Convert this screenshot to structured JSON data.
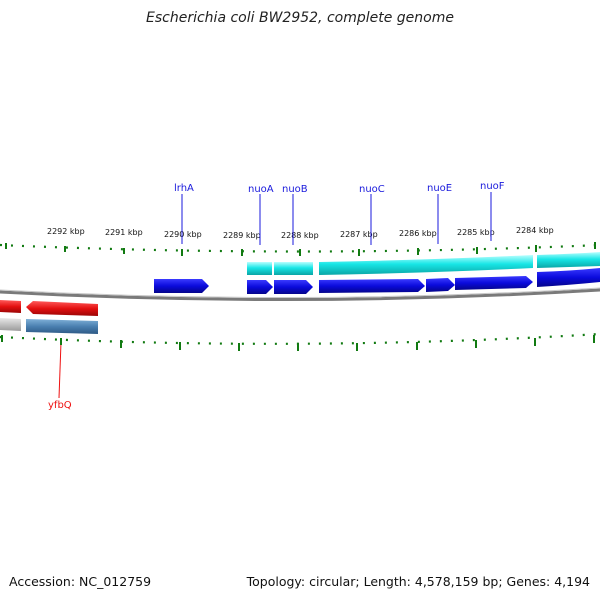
{
  "title": "Escherichia coli BW2952, complete genome",
  "footer": {
    "accession": "Accession: NC_012759",
    "summary": "Topology: circular; Length: 4,578,159 bp; Genes: 4,194"
  },
  "scale_labels": [
    "2292 kbp",
    "2291 kbp",
    "2290 kbp",
    "2289 kbp",
    "2288 kbp",
    "2287 kbp",
    "2286 kbp",
    "2285 kbp",
    "2284 kbp"
  ],
  "gene_labels": [
    "lrhA",
    "nuoA",
    "nuoB",
    "nuoC",
    "nuoE",
    "nuoF",
    "yfbQ"
  ],
  "colors": {
    "cds_blue": "#0a0adc",
    "cds_red": "#e01010",
    "gene_cyan": "#10e0e0",
    "gene_steel": "#4a7fb0",
    "tick_green": "#117a11",
    "backbone": "#7a7a7a"
  }
}
